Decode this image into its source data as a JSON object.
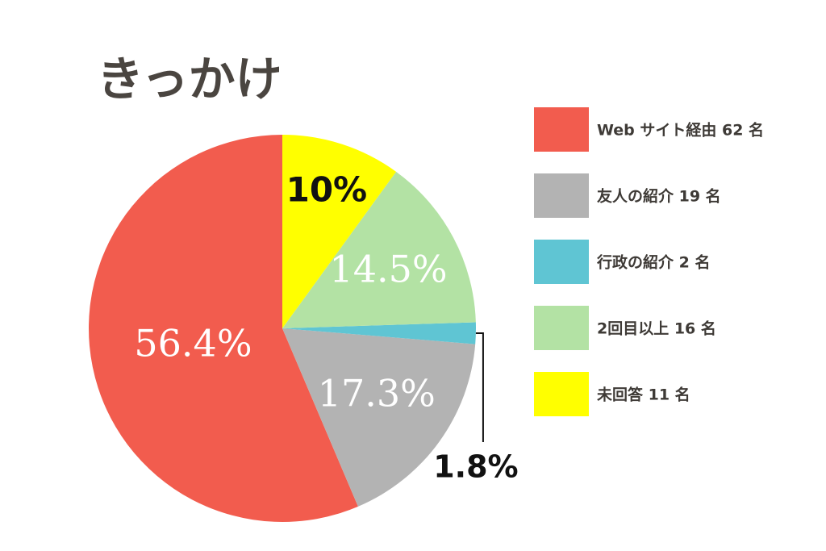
{
  "chart_data": {
    "type": "pie",
    "title": "きっかけ",
    "categories": [
      "Web サイト経由 62 名",
      "友人の紹介 19 名",
      "行政の紹介 2 名",
      "2回目以上 16 名",
      "未回答 11 名"
    ],
    "values": [
      56.4,
      17.3,
      1.8,
      14.5,
      10
    ],
    "value_labels": [
      "56.4%",
      "17.3%",
      "1.8%",
      "14.5%",
      "10%"
    ],
    "colors": [
      "#f25c4e",
      "#b3b3b3",
      "#5fc5d3",
      "#b3e2a4",
      "#ffff00"
    ],
    "value_label_colors": [
      "#ffffff",
      "#ffffff",
      "#111111",
      "#ffffff",
      "#111111"
    ],
    "direction": "counterclockwise",
    "start": "top",
    "legend": "right"
  }
}
